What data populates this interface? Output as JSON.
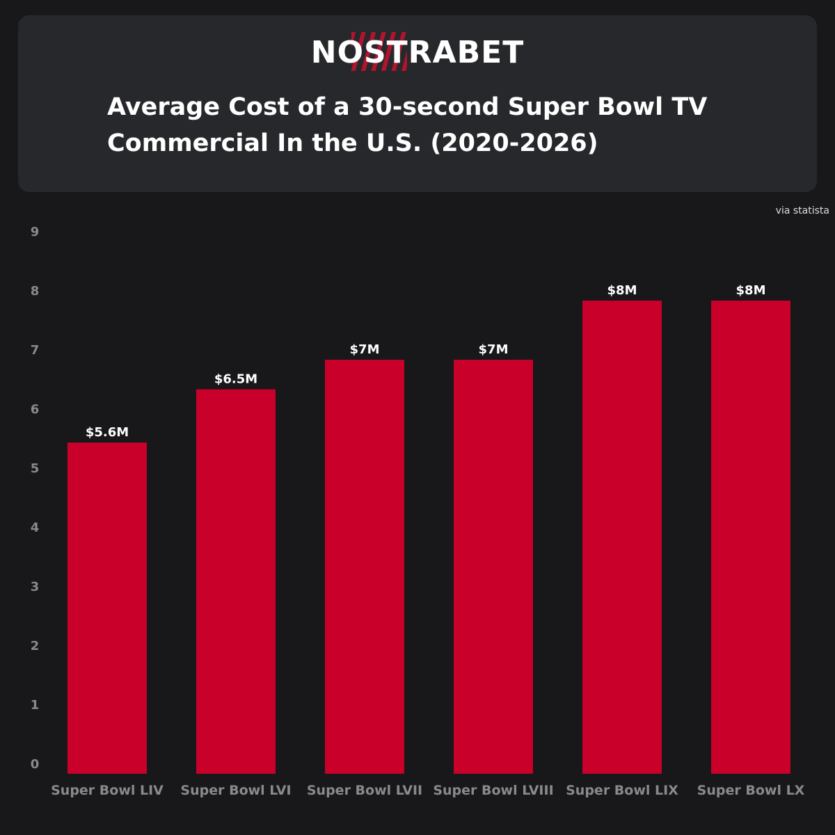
{
  "brand": {
    "logo_text": "NOSTRABET",
    "accent": "#c8102e"
  },
  "source_note": "via statista",
  "chart_data": {
    "type": "bar",
    "title": "Average Cost of a 30-second Super Bowl TV Commercial In the U.S. (2020-2026)",
    "xlabel": "",
    "ylabel": "",
    "categories": [
      "Super Bowl LIV",
      "Super Bowl LVI",
      "Super Bowl LVII",
      "Super Bowl LVIII",
      "Super Bowl LIX",
      "Super Bowl LX"
    ],
    "values": [
      5.6,
      6.5,
      7,
      7,
      8,
      8
    ],
    "data_labels": [
      "$5.6M",
      "$6.5M",
      "$7M",
      "$7M",
      "$8M",
      "$8M"
    ],
    "ylim": [
      0,
      9
    ],
    "yticks": [
      0,
      1,
      2,
      3,
      4,
      5,
      6,
      7,
      8,
      9
    ],
    "grid": false,
    "bar_color": "#c8002a"
  }
}
